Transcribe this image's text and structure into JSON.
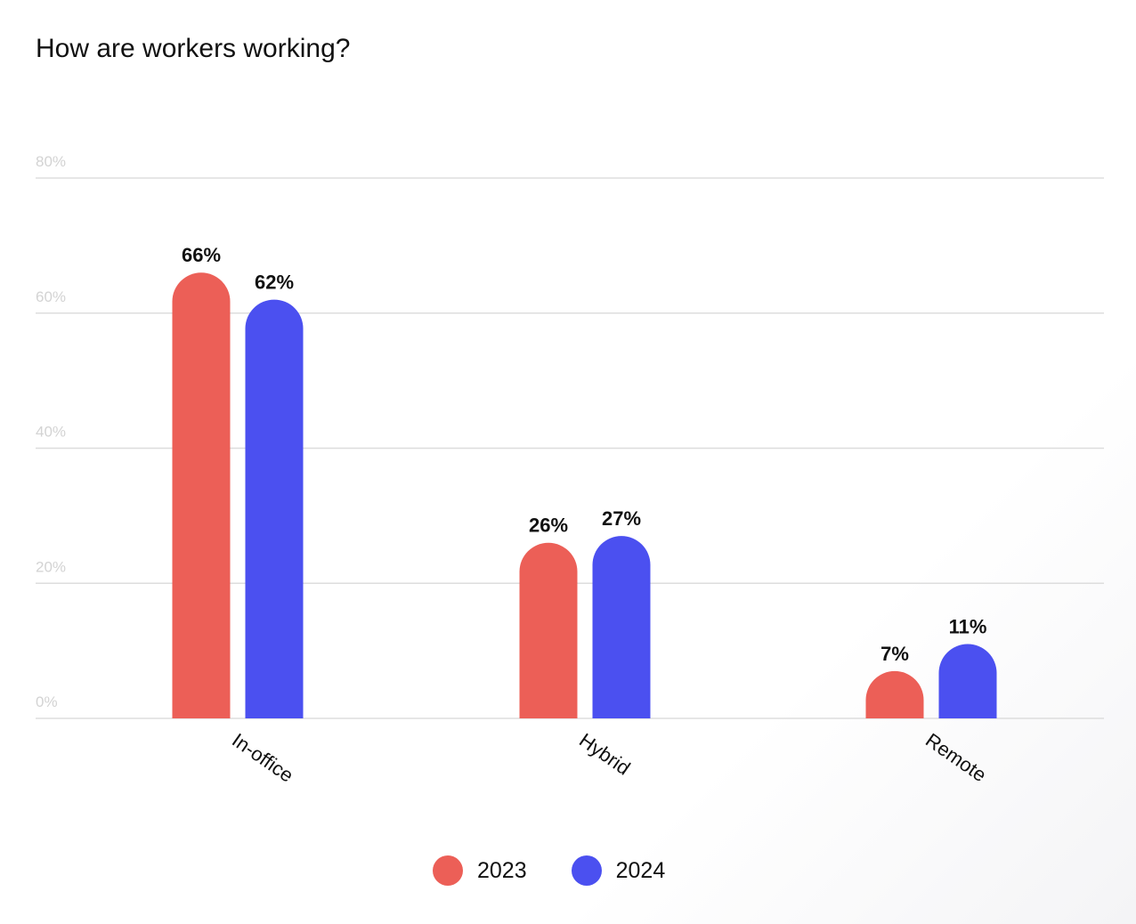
{
  "colors": {
    "series_2023": "#ec5f57",
    "series_2024": "#4b50f0",
    "grid": "#dddddd",
    "tick_text": "#d3d3d3"
  },
  "chart_data": {
    "type": "bar",
    "title": "How are workers working?",
    "xlabel": "",
    "ylabel": "",
    "categories": [
      "In-office",
      "Hybrid",
      "Remote"
    ],
    "series": [
      {
        "name": "2023",
        "values": [
          66,
          26,
          7
        ],
        "labels": [
          "66%",
          "26%",
          "7%"
        ]
      },
      {
        "name": "2024",
        "values": [
          62,
          27,
          11
        ],
        "labels": [
          "62%",
          "27%",
          "11%"
        ]
      }
    ],
    "ylim": [
      0,
      80
    ],
    "yticks": [
      0,
      20,
      40,
      60,
      80
    ],
    "ytick_labels": [
      "0%",
      "20%",
      "40%",
      "60%",
      "80%"
    ],
    "grid": true,
    "legend_position": "bottom-center"
  }
}
